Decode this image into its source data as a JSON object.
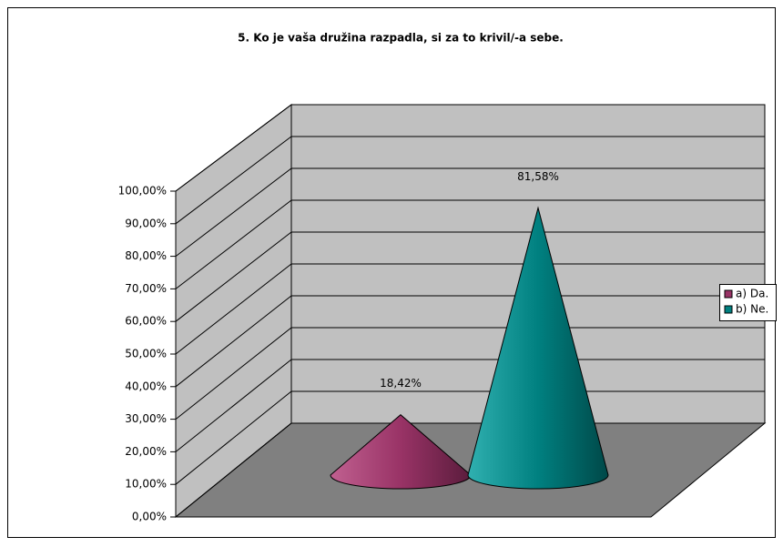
{
  "chart_data": {
    "type": "cone",
    "title": "5. Ko je vaša družina razpadla, si za to krivil/-a sebe.",
    "series": [
      {
        "name": "a) Da.",
        "color": "#993366",
        "values": [
          18.42
        ],
        "value_labels": [
          "18,42%"
        ]
      },
      {
        "name": "b) Ne.",
        "color": "#008080",
        "values": [
          81.58
        ],
        "value_labels": [
          "81,58%"
        ]
      }
    ],
    "ylim": [
      0,
      100
    ],
    "yticks": [
      {
        "value": 0,
        "label": "0,00%"
      },
      {
        "value": 10,
        "label": "10,00%"
      },
      {
        "value": 20,
        "label": "20,00%"
      },
      {
        "value": 30,
        "label": "30,00%"
      },
      {
        "value": 40,
        "label": "40,00%"
      },
      {
        "value": 50,
        "label": "50,00%"
      },
      {
        "value": 60,
        "label": "60,00%"
      },
      {
        "value": 70,
        "label": "70,00%"
      },
      {
        "value": 80,
        "label": "80,00%"
      },
      {
        "value": 90,
        "label": "90,00%"
      },
      {
        "value": 100,
        "label": "100,00%"
      }
    ],
    "grid": true,
    "legend": "right"
  }
}
